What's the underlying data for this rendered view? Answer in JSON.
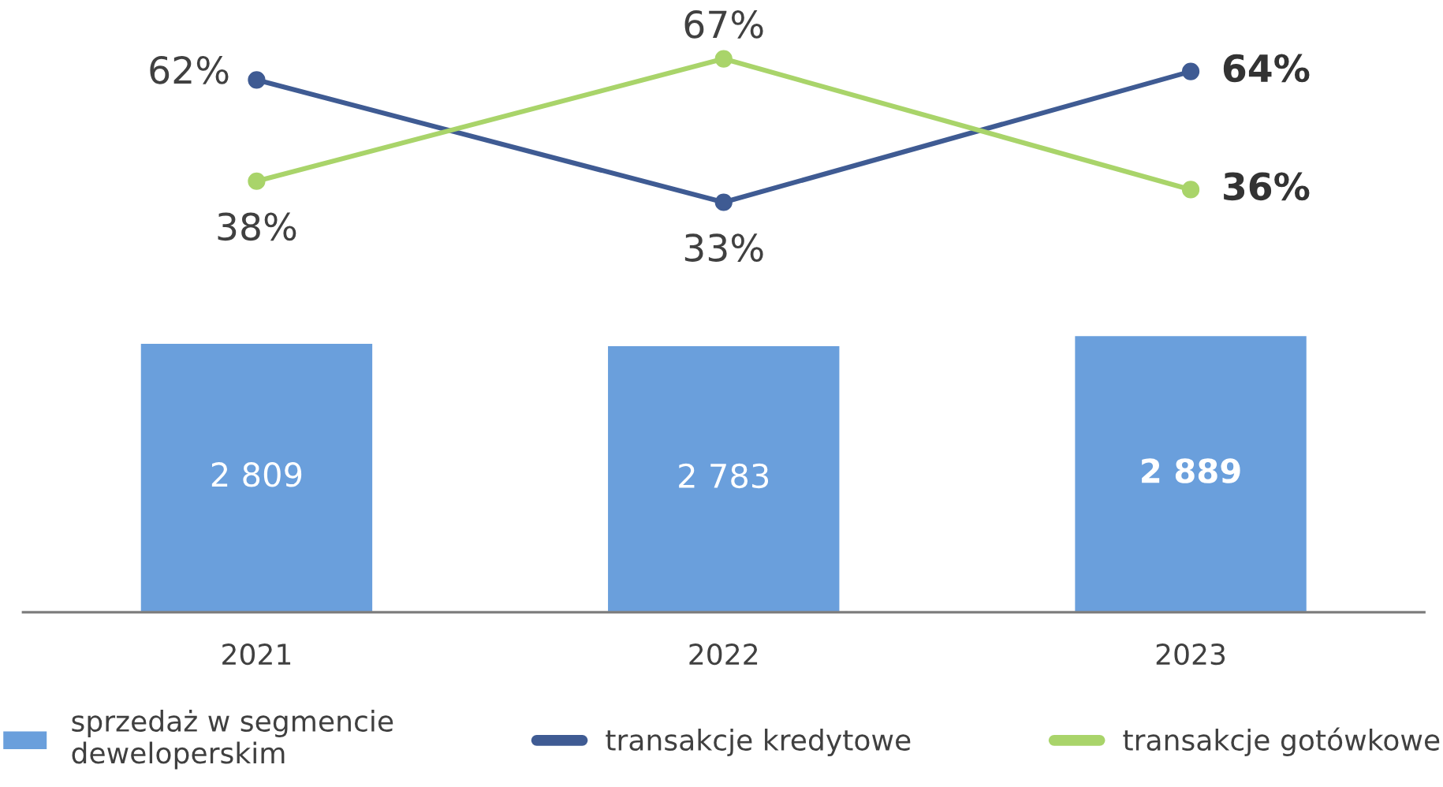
{
  "chart_data": [
    {
      "type": "line",
      "categories": [
        "2021",
        "2022",
        "2023"
      ],
      "series": [
        {
          "name": "transakcje kredytowe",
          "color": "#3f5b93",
          "values": [
            62,
            33,
            64
          ],
          "value_labels": [
            "62%",
            "33%",
            "64%"
          ]
        },
        {
          "name": "transakcje gotówkowe",
          "color": "#a9d46a",
          "values": [
            38,
            67,
            36
          ],
          "value_labels": [
            "38%",
            "67%",
            "36%"
          ]
        }
      ],
      "tick_labels": false,
      "marker": "circle",
      "line_style": "solid",
      "legend": "bottom"
    },
    {
      "type": "bar",
      "categories": [
        "2021",
        "2022",
        "2023"
      ],
      "series": [
        {
          "name": "sprzedaż w segmencie\ndeweloperskim",
          "color": "#6a9fdc",
          "values": [
            2809,
            2783,
            2889
          ],
          "value_labels": [
            "2 809",
            "2 783",
            "2 889"
          ]
        }
      ],
      "tick_labels": "x",
      "legend": "bottom"
    }
  ]
}
